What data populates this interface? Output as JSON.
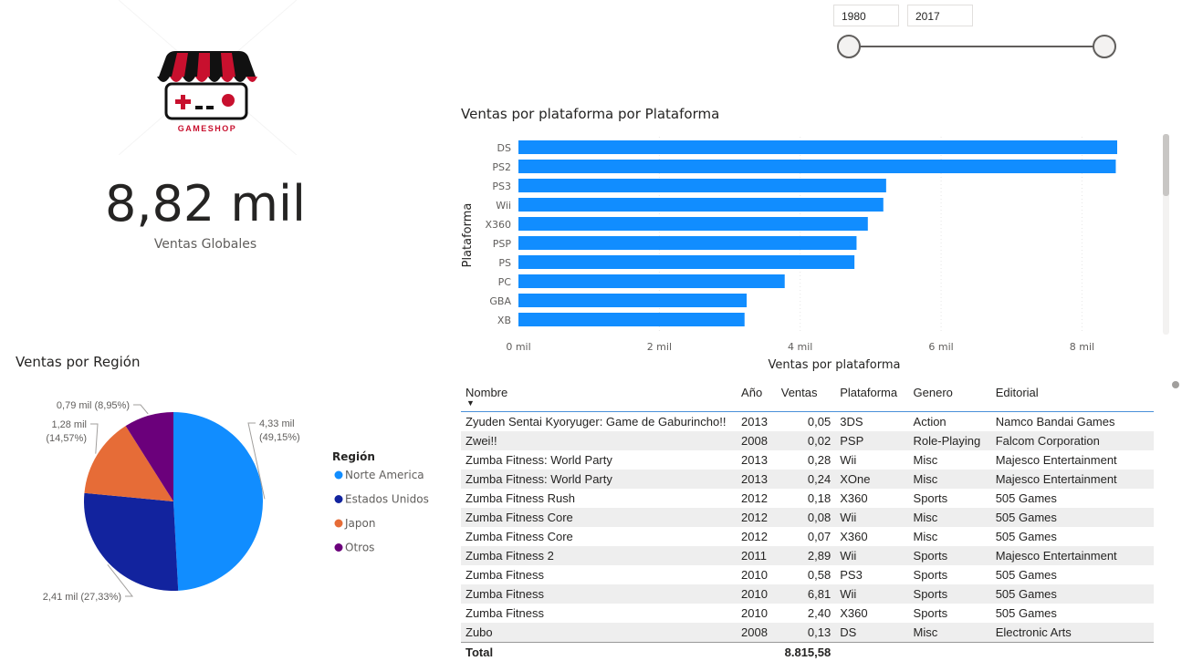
{
  "logo": {
    "brand_text": "GAMESHOP"
  },
  "kpi": {
    "value": "8,82 mil",
    "label": "Ventas Globales"
  },
  "slicer": {
    "start_year": "1980",
    "end_year": "2017",
    "range": [
      1980,
      2017
    ],
    "selected": [
      1980,
      2017
    ]
  },
  "bar_chart_title": "Ventas por plataforma por Plataforma",
  "pie_chart_title": "Ventas por Región",
  "pie_legend_title": "Región",
  "chart_data": [
    {
      "type": "bar",
      "orientation": "horizontal",
      "title": "Ventas por plataforma por Plataforma",
      "xlabel": "Ventas por plataforma",
      "ylabel": "Plataforma",
      "categories": [
        "DS",
        "PS2",
        "PS3",
        "Wii",
        "X360",
        "PSP",
        "PS",
        "PC",
        "GBA",
        "XB"
      ],
      "values": [
        8.5,
        8.48,
        5.22,
        5.18,
        4.96,
        4.8,
        4.77,
        3.78,
        3.24,
        3.21
      ],
      "xlim": [
        0,
        8.5
      ],
      "xticks": [
        0,
        2,
        4,
        6,
        8
      ],
      "xtick_labels": [
        "0 mil",
        "2 mil",
        "4 mil",
        "6 mil",
        "8 mil"
      ],
      "color": "#118DFF"
    },
    {
      "type": "pie",
      "title": "Ventas por Región",
      "legend_title": "Región",
      "legend_position": "right",
      "slices": [
        {
          "name": "Norte America",
          "value": 4.33,
          "label_value": "4,33 mil",
          "label_pct": "(49,15%)",
          "color": "#118DFF"
        },
        {
          "name": "Estados Unidos",
          "value": 2.41,
          "label_value": "2,41 mil (27,33%)",
          "label_pct": "",
          "color": "#12239E"
        },
        {
          "name": "Japon",
          "value": 1.28,
          "label_value": "1,28 mil",
          "label_pct": "(14,57%)",
          "color": "#E66C37"
        },
        {
          "name": "Otros",
          "value": 0.79,
          "label_value": "0,79 mil (8,95%)",
          "label_pct": "",
          "color": "#6B007B"
        }
      ]
    }
  ],
  "table": {
    "headers": [
      "Nombre",
      "Año",
      "Ventas",
      "Plataforma",
      "Genero",
      "Editorial"
    ],
    "rows": [
      [
        "Zyuden Sentai Kyoryuger: Game de Gaburincho!!",
        "2013",
        "0,05",
        "3DS",
        "Action",
        "Namco Bandai Games"
      ],
      [
        "Zwei!!",
        "2008",
        "0,02",
        "PSP",
        "Role-Playing",
        "Falcom Corporation"
      ],
      [
        "Zumba Fitness: World Party",
        "2013",
        "0,28",
        "Wii",
        "Misc",
        "Majesco Entertainment"
      ],
      [
        "Zumba Fitness: World Party",
        "2013",
        "0,24",
        "XOne",
        "Misc",
        "Majesco Entertainment"
      ],
      [
        "Zumba Fitness Rush",
        "2012",
        "0,18",
        "X360",
        "Sports",
        "505 Games"
      ],
      [
        "Zumba Fitness Core",
        "2012",
        "0,08",
        "Wii",
        "Misc",
        "505 Games"
      ],
      [
        "Zumba Fitness Core",
        "2012",
        "0,07",
        "X360",
        "Misc",
        "505 Games"
      ],
      [
        "Zumba Fitness 2",
        "2011",
        "2,89",
        "Wii",
        "Sports",
        "Majesco Entertainment"
      ],
      [
        "Zumba Fitness",
        "2010",
        "0,58",
        "PS3",
        "Sports",
        "505 Games"
      ],
      [
        "Zumba Fitness",
        "2010",
        "6,81",
        "Wii",
        "Sports",
        "505 Games"
      ],
      [
        "Zumba Fitness",
        "2010",
        "2,40",
        "X360",
        "Sports",
        "505 Games"
      ],
      [
        "Zubo",
        "2008",
        "0,13",
        "DS",
        "Misc",
        "Electronic Arts"
      ]
    ],
    "total_label": "Total",
    "total_value": "8.815,58"
  }
}
